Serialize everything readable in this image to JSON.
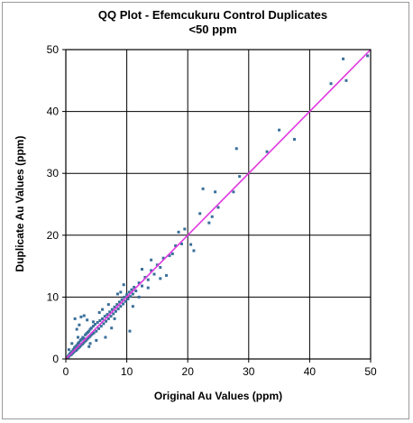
{
  "chart_data": {
    "type": "scatter",
    "title": "QQ Plot - Efemcukuru Control Duplicates",
    "subtitle": "<50 ppm",
    "xlabel": "Original Au Values (ppm)",
    "ylabel": "Duplicate Au Values (ppm)",
    "xlim": [
      0,
      50
    ],
    "ylim": [
      0,
      50
    ],
    "xticks": [
      0,
      10,
      20,
      30,
      40,
      50
    ],
    "yticks": [
      0,
      10,
      20,
      30,
      40,
      50
    ],
    "grid": true,
    "legend": "none",
    "colors": {
      "points": "#3a6f9a",
      "reference_line": "#e13ae0",
      "grid": "#000000"
    },
    "reference_line": {
      "from": [
        0,
        0
      ],
      "to": [
        50,
        50
      ]
    },
    "points": [
      [
        0.3,
        0.2
      ],
      [
        0.4,
        0.5
      ],
      [
        0.5,
        0.4
      ],
      [
        0.6,
        0.8
      ],
      [
        0.7,
        0.6
      ],
      [
        0.8,
        1.0
      ],
      [
        0.9,
        0.7
      ],
      [
        1.0,
        1.2
      ],
      [
        1.1,
        0.9
      ],
      [
        1.2,
        1.5
      ],
      [
        1.3,
        1.1
      ],
      [
        1.4,
        1.8
      ],
      [
        1.5,
        1.3
      ],
      [
        1.6,
        2.0
      ],
      [
        1.7,
        1.4
      ],
      [
        1.8,
        2.2
      ],
      [
        1.9,
        1.6
      ],
      [
        2.0,
        2.5
      ],
      [
        2.1,
        1.8
      ],
      [
        2.2,
        2.7
      ],
      [
        2.3,
        2.0
      ],
      [
        2.4,
        3.0
      ],
      [
        2.5,
        2.2
      ],
      [
        2.6,
        3.2
      ],
      [
        2.7,
        2.4
      ],
      [
        2.8,
        3.5
      ],
      [
        2.9,
        2.6
      ],
      [
        3.0,
        3.3
      ],
      [
        3.1,
        2.8
      ],
      [
        3.2,
        3.9
      ],
      [
        3.3,
        3.0
      ],
      [
        3.4,
        4.1
      ],
      [
        3.5,
        3.2
      ],
      [
        3.6,
        4.3
      ],
      [
        3.7,
        3.4
      ],
      [
        3.8,
        4.5
      ],
      [
        3.9,
        3.6
      ],
      [
        4.0,
        4.8
      ],
      [
        4.1,
        3.8
      ],
      [
        4.2,
        5.0
      ],
      [
        4.3,
        4.0
      ],
      [
        4.5,
        5.3
      ],
      [
        4.6,
        4.2
      ],
      [
        4.8,
        5.6
      ],
      [
        5.0,
        4.5
      ],
      [
        5.2,
        5.9
      ],
      [
        5.4,
        4.9
      ],
      [
        5.6,
        6.2
      ],
      [
        5.8,
        5.3
      ],
      [
        6.0,
        6.5
      ],
      [
        6.2,
        5.7
      ],
      [
        6.4,
        6.9
      ],
      [
        6.6,
        6.1
      ],
      [
        6.8,
        7.2
      ],
      [
        7.0,
        6.5
      ],
      [
        7.2,
        7.6
      ],
      [
        7.4,
        6.9
      ],
      [
        7.6,
        8.0
      ],
      [
        7.8,
        7.3
      ],
      [
        8.0,
        8.4
      ],
      [
        8.2,
        7.7
      ],
      [
        8.4,
        8.8
      ],
      [
        8.6,
        8.1
      ],
      [
        8.8,
        9.2
      ],
      [
        9.0,
        8.5
      ],
      [
        9.2,
        9.6
      ],
      [
        9.4,
        8.9
      ],
      [
        9.6,
        10.0
      ],
      [
        9.8,
        9.3
      ],
      [
        10.0,
        10.4
      ],
      [
        10.2,
        9.7
      ],
      [
        10.4,
        10.8
      ],
      [
        10.6,
        10.1
      ],
      [
        10.8,
        11.2
      ],
      [
        11.0,
        10.5
      ],
      [
        11.2,
        11.6
      ],
      [
        11.5,
        11.0
      ],
      [
        12.0,
        12.3
      ],
      [
        12.5,
        11.8
      ],
      [
        13.0,
        13.2
      ],
      [
        13.5,
        12.8
      ],
      [
        14.0,
        14.3
      ],
      [
        14.5,
        13.7
      ],
      [
        15.0,
        15.2
      ],
      [
        15.5,
        14.8
      ],
      [
        16.0,
        16.3
      ],
      [
        17.0,
        16.7
      ],
      [
        18.0,
        18.3
      ],
      [
        19.0,
        18.6
      ],
      [
        1.5,
        6.5
      ],
      [
        2.5,
        6.8
      ],
      [
        3.5,
        6.3
      ],
      [
        4.0,
        2.5
      ],
      [
        5.5,
        7.5
      ],
      [
        3.0,
        7.0
      ],
      [
        1.8,
        4.8
      ],
      [
        2.2,
        5.5
      ],
      [
        6.5,
        3.5
      ],
      [
        7.5,
        5.0
      ],
      [
        8.5,
        10.5
      ],
      [
        9.5,
        12.0
      ],
      [
        10.5,
        4.5
      ],
      [
        11.0,
        8.5
      ],
      [
        12.5,
        14.5
      ],
      [
        13.5,
        11.5
      ],
      [
        16.5,
        13.5
      ],
      [
        18.5,
        20.5
      ],
      [
        20.5,
        18.5
      ],
      [
        21.0,
        17.5
      ],
      [
        22.0,
        23.5
      ],
      [
        22.5,
        27.5
      ],
      [
        23.5,
        22.0
      ],
      [
        24.5,
        27.0
      ],
      [
        25.0,
        24.5
      ],
      [
        24.0,
        23.0
      ],
      [
        27.5,
        27.0
      ],
      [
        28.0,
        34.0
      ],
      [
        28.5,
        29.5
      ],
      [
        33.0,
        33.5
      ],
      [
        35.0,
        37.0
      ],
      [
        37.5,
        35.5
      ],
      [
        43.5,
        44.5
      ],
      [
        45.5,
        48.5
      ],
      [
        46.0,
        45.0
      ],
      [
        49.5,
        49.0
      ],
      [
        12.0,
        10.0
      ],
      [
        14.0,
        16.0
      ],
      [
        15.5,
        13.0
      ],
      [
        17.5,
        17.0
      ],
      [
        19.5,
        21.0
      ],
      [
        6.0,
        8.0
      ],
      [
        4.5,
        6.0
      ],
      [
        2.0,
        3.5
      ],
      [
        1.0,
        2.5
      ],
      [
        0.5,
        1.5
      ],
      [
        3.8,
        2.0
      ],
      [
        5.0,
        3.0
      ],
      [
        7.0,
        8.8
      ],
      [
        8.0,
        6.5
      ],
      [
        9.0,
        10.8
      ]
    ]
  }
}
